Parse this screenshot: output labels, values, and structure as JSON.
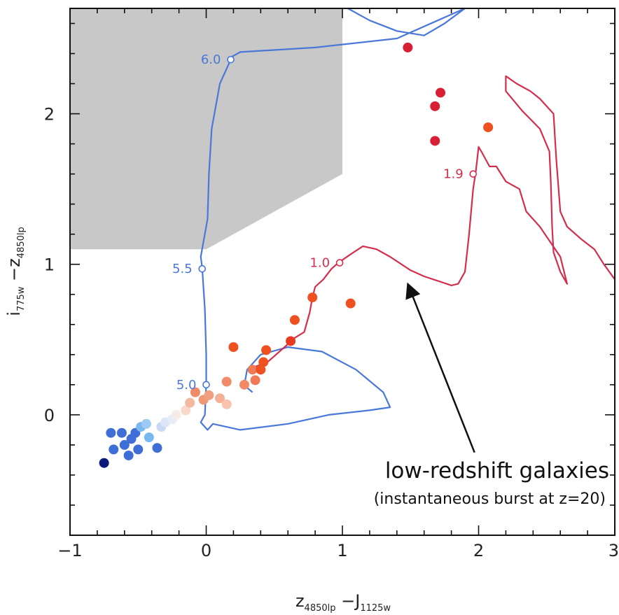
{
  "chart_data": {
    "type": "scatter",
    "xlim": [
      -1,
      3
    ],
    "ylim": [
      -0.8,
      2.7
    ],
    "x_ticks": [
      -1,
      0,
      1,
      2,
      3
    ],
    "y_ticks": [
      0,
      1,
      2
    ],
    "x_tick_labels": [
      "−1",
      "0",
      "1",
      "2",
      "3"
    ],
    "y_tick_labels": [
      "0",
      "1",
      "2"
    ],
    "xlabel": {
      "pre": "z",
      "pre_sub": "4850lp",
      "sep": " −J",
      "post_sub": "1125w"
    },
    "ylabel": {
      "pre": "i",
      "pre_sub": "775w",
      "sep": " −z",
      "post_sub": "4850lp"
    },
    "selection_region": {
      "polygon": [
        [
          -1,
          2.7
        ],
        [
          1,
          2.7
        ],
        [
          1,
          1.6
        ],
        [
          0,
          1.1
        ],
        [
          -1,
          1.1
        ]
      ],
      "color": "#c8c8c8"
    },
    "tracks": [
      {
        "color": "#4a78d8",
        "points": [
          [
            0.2,
            2.7
          ],
          [
            0.6,
            2.75
          ],
          [
            0.8,
            2.78
          ],
          [
            0.9,
            2.75
          ],
          [
            1.0,
            2.72
          ],
          [
            1.2,
            2.62
          ],
          [
            1.4,
            2.55
          ],
          [
            1.6,
            2.52
          ],
          [
            1.75,
            2.6
          ],
          [
            1.9,
            2.7
          ],
          [
            2.0,
            2.78
          ],
          [
            1.9,
            2.7
          ],
          [
            1.4,
            2.5
          ],
          [
            0.8,
            2.44
          ],
          [
            0.25,
            2.41
          ],
          [
            0.19,
            2.38
          ],
          [
            0.1,
            2.2
          ],
          [
            0.04,
            1.9
          ],
          [
            0.02,
            1.6
          ],
          [
            0.01,
            1.3
          ],
          [
            -0.04,
            1.05
          ],
          [
            -0.03,
            0.98
          ],
          [
            -0.01,
            0.7
          ],
          [
            0.0,
            0.4
          ],
          [
            0.0,
            0.2
          ],
          [
            -0.01,
            0.0
          ],
          [
            -0.04,
            -0.05
          ],
          [
            0.01,
            -0.1
          ],
          [
            0.05,
            -0.06
          ],
          [
            0.25,
            -0.1
          ],
          [
            0.6,
            -0.06
          ],
          [
            0.9,
            0.0
          ],
          [
            1.2,
            0.03
          ],
          [
            1.35,
            0.05
          ],
          [
            1.3,
            0.15
          ],
          [
            1.1,
            0.3
          ],
          [
            0.85,
            0.42
          ],
          [
            0.6,
            0.45
          ],
          [
            0.4,
            0.4
          ],
          [
            0.3,
            0.3
          ],
          [
            0.28,
            0.2
          ],
          [
            0.3,
            0.18
          ],
          [
            0.34,
            0.15
          ]
        ],
        "markers": [
          {
            "x": 0.18,
            "y": 2.36,
            "label": "6.0"
          },
          {
            "x": -0.03,
            "y": 0.97,
            "label": "5.5"
          },
          {
            "x": 0.0,
            "y": 0.2,
            "label": "5.0"
          }
        ]
      },
      {
        "color": "#d42e4e",
        "points": [
          [
            0.36,
            0.32
          ],
          [
            0.45,
            0.35
          ],
          [
            0.6,
            0.47
          ],
          [
            0.63,
            0.5
          ],
          [
            0.72,
            0.55
          ],
          [
            0.76,
            0.68
          ],
          [
            0.78,
            0.78
          ],
          [
            0.8,
            0.85
          ],
          [
            0.86,
            0.9
          ],
          [
            0.92,
            0.97
          ],
          [
            0.97,
            1.01
          ],
          [
            1.05,
            1.06
          ],
          [
            1.15,
            1.12
          ],
          [
            1.25,
            1.1
          ],
          [
            1.35,
            1.05
          ],
          [
            1.5,
            0.96
          ],
          [
            1.6,
            0.92
          ],
          [
            1.7,
            0.89
          ],
          [
            1.8,
            0.86
          ],
          [
            1.85,
            0.87
          ],
          [
            1.9,
            0.95
          ],
          [
            1.93,
            1.2
          ],
          [
            1.96,
            1.5
          ],
          [
            1.98,
            1.62
          ],
          [
            2.0,
            1.78
          ],
          [
            2.02,
            1.75
          ],
          [
            2.08,
            1.65
          ],
          [
            2.13,
            1.65
          ],
          [
            2.2,
            1.55
          ],
          [
            2.3,
            1.5
          ],
          [
            2.35,
            1.35
          ],
          [
            2.45,
            1.25
          ],
          [
            2.6,
            1.05
          ],
          [
            2.65,
            0.87
          ],
          [
            2.6,
            0.95
          ],
          [
            2.55,
            1.08
          ],
          [
            2.54,
            1.25
          ],
          [
            2.53,
            1.55
          ],
          [
            2.52,
            1.75
          ],
          [
            2.45,
            1.9
          ],
          [
            2.32,
            2.02
          ],
          [
            2.2,
            2.15
          ],
          [
            2.2,
            2.25
          ],
          [
            2.28,
            2.2
          ],
          [
            2.38,
            2.15
          ],
          [
            2.45,
            2.1
          ],
          [
            2.55,
            2.0
          ],
          [
            2.57,
            1.7
          ],
          [
            2.6,
            1.35
          ],
          [
            2.65,
            1.25
          ],
          [
            2.75,
            1.17
          ],
          [
            2.85,
            1.1
          ],
          [
            2.92,
            1.0
          ],
          [
            3.0,
            0.9
          ]
        ],
        "markers": [
          {
            "x": 0.98,
            "y": 1.01,
            "label": "1.0"
          },
          {
            "x": 1.96,
            "y": 1.6,
            "label": "1.9"
          }
        ]
      }
    ],
    "points": [
      {
        "x": -0.75,
        "y": -0.32,
        "color": "#0a1a78"
      },
      {
        "x": -0.7,
        "y": -0.12,
        "color": "#3f6fd6"
      },
      {
        "x": -0.68,
        "y": -0.23,
        "color": "#3f6fd6"
      },
      {
        "x": -0.62,
        "y": -0.12,
        "color": "#3f6fd6"
      },
      {
        "x": -0.6,
        "y": -0.2,
        "color": "#3f6fd6"
      },
      {
        "x": -0.57,
        "y": -0.27,
        "color": "#3f6fd6"
      },
      {
        "x": -0.55,
        "y": -0.16,
        "color": "#3f6fd6"
      },
      {
        "x": -0.52,
        "y": -0.12,
        "color": "#3f6fd6"
      },
      {
        "x": -0.5,
        "y": -0.23,
        "color": "#3f6fd6"
      },
      {
        "x": -0.48,
        "y": -0.08,
        "color": "#7ab8f0"
      },
      {
        "x": -0.44,
        "y": -0.06,
        "color": "#9ccaf5"
      },
      {
        "x": -0.42,
        "y": -0.15,
        "color": "#7ab8f0"
      },
      {
        "x": -0.36,
        "y": -0.22,
        "color": "#3f6fd6"
      },
      {
        "x": -0.33,
        "y": -0.08,
        "color": "#c8d8f5"
      },
      {
        "x": -0.3,
        "y": -0.05,
        "color": "#dde6f8"
      },
      {
        "x": -0.25,
        "y": -0.03,
        "color": "#e6ecf8"
      },
      {
        "x": -0.22,
        "y": 0.0,
        "color": "#f5ecea"
      },
      {
        "x": -0.15,
        "y": 0.03,
        "color": "#f8d8c8"
      },
      {
        "x": -0.12,
        "y": 0.08,
        "color": "#f4b8a0"
      },
      {
        "x": -0.08,
        "y": 0.15,
        "color": "#f08a68"
      },
      {
        "x": -0.02,
        "y": 0.1,
        "color": "#f09878"
      },
      {
        "x": 0.02,
        "y": 0.13,
        "color": "#f0a080"
      },
      {
        "x": 0.1,
        "y": 0.11,
        "color": "#f4b094"
      },
      {
        "x": 0.15,
        "y": 0.07,
        "color": "#f8c4b0"
      },
      {
        "x": 0.15,
        "y": 0.22,
        "color": "#f08a68"
      },
      {
        "x": 0.2,
        "y": 0.45,
        "color": "#ee5020"
      },
      {
        "x": 0.28,
        "y": 0.2,
        "color": "#f28a68"
      },
      {
        "x": 0.34,
        "y": 0.3,
        "color": "#f07a58"
      },
      {
        "x": 0.36,
        "y": 0.23,
        "color": "#f07a58"
      },
      {
        "x": 0.4,
        "y": 0.3,
        "color": "#ee5020"
      },
      {
        "x": 0.42,
        "y": 0.35,
        "color": "#ee5020"
      },
      {
        "x": 0.44,
        "y": 0.43,
        "color": "#ee5020"
      },
      {
        "x": 0.62,
        "y": 0.49,
        "color": "#e83a20"
      },
      {
        "x": 0.65,
        "y": 0.63,
        "color": "#ee5020"
      },
      {
        "x": 0.78,
        "y": 0.78,
        "color": "#ee5020"
      },
      {
        "x": 1.06,
        "y": 0.74,
        "color": "#ee5020"
      },
      {
        "x": 1.48,
        "y": 2.44,
        "color": "#d82035"
      },
      {
        "x": 1.68,
        "y": 2.05,
        "color": "#d82035"
      },
      {
        "x": 1.68,
        "y": 1.82,
        "color": "#d82035"
      },
      {
        "x": 1.72,
        "y": 2.14,
        "color": "#d82035"
      },
      {
        "x": 2.07,
        "y": 1.91,
        "color": "#ee5020"
      }
    ],
    "annotation": {
      "text": "low-redshift galaxies",
      "subtext": "(instantaneous burst at z=20)",
      "arrow_from": [
        1.97,
        -0.25
      ],
      "arrow_to": [
        1.48,
        0.87
      ]
    }
  }
}
